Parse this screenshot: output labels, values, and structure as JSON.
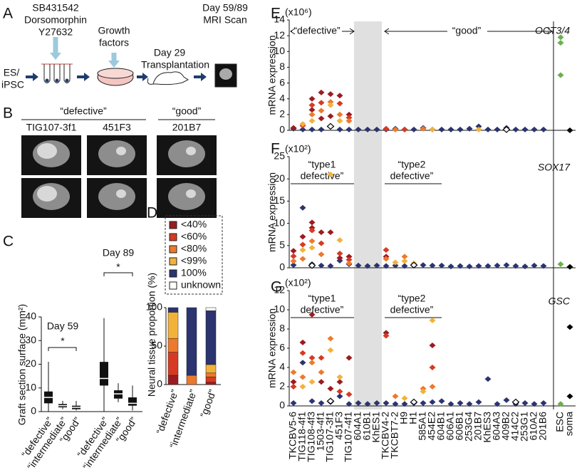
{
  "panel_labels": [
    "A",
    "B",
    "C",
    "D",
    "E",
    "F",
    "G"
  ],
  "panel_a": {
    "drugs": [
      "SB431542",
      "Dorsomorphin",
      "Y27632"
    ],
    "growth": [
      "Growth",
      "factors"
    ],
    "day29": [
      "Day 29",
      "Transplantation"
    ],
    "mri": [
      "Day 59/89",
      "MRI Scan"
    ],
    "source": [
      "ES/",
      "iPSC"
    ]
  },
  "panel_b": {
    "groups": [
      "“defective”",
      "“good”"
    ],
    "lines": [
      "TIG107-3f1",
      "451F3",
      "201B7"
    ]
  },
  "chart_data": [
    {
      "type": "box",
      "ylabel": "Graft section surface (mm²)",
      "categories": [
        "“defective”",
        "“intermediate”",
        "“good”",
        "“defective”",
        "“intermediate”",
        "“good”"
      ],
      "low": [
        0,
        1,
        0.5,
        0,
        4,
        0.5
      ],
      "q1": [
        3.5,
        1.8,
        1,
        11,
        5.5,
        2.5
      ],
      "median": [
        6,
        2.5,
        1.8,
        14,
        7.5,
        3.5
      ],
      "q3": [
        8.5,
        3.2,
        2.5,
        21,
        9,
        6
      ],
      "high": [
        21,
        4.5,
        4.5,
        39.5,
        12,
        11
      ],
      "annotations": [
        "Day 59",
        "Day 89",
        "*",
        "*"
      ],
      "ylim": [
        0,
        40
      ],
      "yticks": [
        0,
        10,
        20,
        30,
        40
      ]
    },
    {
      "type": "stacked_bar",
      "ylabel": "Neural tissue proportion (%)",
      "categories": [
        "“defective”",
        "“intermediate”",
        "“good”"
      ],
      "series": [
        {
          "name": "<40%",
          "color": "#9b1c20",
          "values": [
            12,
            0,
            3
          ]
        },
        {
          "name": "<60%",
          "color": "#d63a22",
          "values": [
            30,
            0,
            7
          ]
        },
        {
          "name": "<80%",
          "color": "#ec7a2c",
          "values": [
            18,
            12,
            5
          ]
        },
        {
          "name": "<99%",
          "color": "#f2b23a",
          "values": [
            34,
            0,
            11
          ]
        },
        {
          "name": "100%",
          "color": "#2b3470",
          "values": [
            6,
            88,
            70
          ]
        },
        {
          "name": "unknown",
          "color": "#ffffff",
          "values": [
            0,
            0,
            4
          ]
        }
      ],
      "ylim": [
        0,
        100
      ],
      "yticks": [
        0,
        50,
        100
      ]
    },
    {
      "type": "strip",
      "title": "OCT3/4",
      "unit": "(x10⁶)",
      "ylabel": "mRNA expression",
      "annotations": [
        "“defective”",
        "“good”"
      ],
      "ylim": [
        0,
        14
      ],
      "yticks": [
        0,
        2,
        4,
        6,
        8,
        10,
        12,
        14
      ],
      "series": [
        {
          "color": "#2b3470",
          "x": [
            "TKCBV5-6",
            "TIG118-4f1",
            "TIG108-4f3",
            "1503-4f1",
            "451F3",
            "TIG107-4f1",
            "604A1",
            "610B1",
            "KhES1",
            "TKCBV4-2",
            "TKCBT7-2",
            "H9",
            "H1",
            "585A1",
            "454E2",
            "604B1",
            "606A1",
            "606B1",
            "253G4",
            "201B7",
            "KhES3",
            "604A3",
            "409B2",
            "414C2",
            "253G1",
            "610A2",
            "201B6"
          ],
          "values": [
            0.2,
            0.1,
            0.1,
            0.1,
            0.1,
            0.1,
            0.1,
            0.1,
            0.1,
            0.1,
            0.2,
            0.1,
            0.1,
            0.3,
            0.1,
            0.1,
            0.1,
            0.1,
            0.2,
            0.5,
            0.1,
            0.1,
            0.3,
            0.1,
            0.1,
            0.1,
            0.1
          ]
        },
        {
          "color": "#9b1c20",
          "x": [
            "TKCBV5-6",
            "TIG108-4f3",
            "1503-4f1",
            "TIG107-3f1",
            "451F3",
            "TIG107-4f1",
            "1503-4f1",
            "TIG107-3f1",
            "TIG108-4f3"
          ],
          "values": [
            0.3,
            4.0,
            4.8,
            1.8,
            4.4,
            2.0,
            1.5,
            4.6,
            2.6
          ]
        },
        {
          "color": "#d63a22",
          "x": [
            "TIG118-4f1",
            "TIG108-4f3",
            "1503-4f1",
            "451F3",
            "TIG107-4f1",
            "TKCBV4-2",
            "H9"
          ],
          "values": [
            0.6,
            3.2,
            3.5,
            3.4,
            1.6,
            0.2,
            0.1
          ]
        },
        {
          "color": "#ec7a2c",
          "x": [
            "TIG108-4f3",
            "1503-4f1",
            "TIG107-3f1",
            "451F3",
            "TIG107-4f1",
            "585A1",
            "TKCBT7-2"
          ],
          "values": [
            2.0,
            2.5,
            3.6,
            2.0,
            1.2,
            0.2,
            0.1
          ]
        },
        {
          "color": "#f2b23a",
          "x": [
            "TIG118-4f1",
            "TIG108-4f3",
            "TIG107-3f1",
            "451F3",
            "454E2",
            "201B7"
          ],
          "values": [
            0.8,
            1.2,
            3.2,
            1.2,
            0.1,
            0.1
          ]
        },
        {
          "color": "#ffffff",
          "x": [
            "TIG107-3f1",
            "409B2"
          ],
          "values": [
            0.5,
            0.1
          ]
        },
        {
          "color": "#6ab04c",
          "x": [
            "ESC",
            "ESC",
            "ESC"
          ],
          "values": [
            11.8,
            11.1,
            7.0
          ]
        },
        {
          "color": "#000000",
          "x": [
            "soma"
          ],
          "values": [
            0
          ]
        }
      ]
    },
    {
      "type": "strip",
      "title": "SOX17",
      "unit": "(x10²)",
      "ylabel": "mRNA expression",
      "annotations": [
        "“type1",
        "defective”",
        "“type2",
        "defective”"
      ],
      "ylim": [
        0,
        25
      ],
      "yticks": [
        0,
        5,
        10,
        15,
        20,
        25
      ],
      "series": [
        {
          "color": "#2b3470",
          "x": [
            "TKCBV5-6",
            "TIG118-4f1",
            "TIG108-4f3",
            "1503-4f1",
            "TIG107-3f1",
            "451F3",
            "TIG107-4f1",
            "604A1",
            "610B1",
            "KhES1",
            "TKCBV4-2",
            "TKCBT7-2",
            "H9",
            "H1",
            "585A1",
            "454E2",
            "604B1",
            "606A1",
            "606B1",
            "253G4",
            "201B7",
            "KhES3",
            "604A3",
            "409B2",
            "414C2",
            "253G1",
            "610A2",
            "201B6"
          ],
          "values": [
            0.6,
            13.5,
            0.8,
            0.5,
            0.4,
            1.6,
            0.8,
            0.5,
            0.4,
            0.5,
            0.4,
            0.5,
            0.4,
            0.5,
            0.6,
            0.5,
            0.5,
            0.3,
            0.4,
            0.3,
            0.4,
            0.4,
            0.5,
            0.6,
            0.4,
            0.3,
            0.5,
            0.4
          ]
        },
        {
          "color": "#9b1c20",
          "x": [
            "TKCBV5-6",
            "TIG118-4f1",
            "TIG108-4f3",
            "1503-4f1",
            "451F3",
            "TIG107-4f1",
            "TIG108-4f3",
            "TIG107-3f1",
            "TKCBV4-2"
          ],
          "values": [
            3.8,
            7.0,
            10.2,
            8.0,
            2.2,
            2.5,
            9.0,
            8.0,
            2.5
          ]
        },
        {
          "color": "#d63a22",
          "x": [
            "TKCBV5-6",
            "TIG118-4f1",
            "TIG108-4f3",
            "1503-4f1",
            "451F3",
            "TIG107-4f1",
            "TKCBV4-2"
          ],
          "values": [
            2.6,
            5.2,
            8.4,
            5.5,
            3.2,
            1.8,
            4.0
          ]
        },
        {
          "color": "#ec7a2c",
          "x": [
            "TKCBV5-6",
            "TIG118-4f1",
            "TIG108-4f3",
            "1503-4f1",
            "TIG107-4f1",
            "TKCBV4-2",
            "H9"
          ],
          "values": [
            1.5,
            2.0,
            6.0,
            3.0,
            1.0,
            2.0,
            2.5
          ]
        },
        {
          "color": "#f2b23a",
          "x": [
            "TIG118-4f1",
            "TIG108-4f3",
            "TIG107-3f1",
            "451F3",
            "TKCBT7-2",
            "H9",
            "H1"
          ],
          "values": [
            4.0,
            4.5,
            21.0,
            6.2,
            1.2,
            1.5,
            1.0
          ]
        },
        {
          "color": "#ffffff",
          "x": [
            "TIG108-4f3",
            "H1"
          ],
          "values": [
            0.5,
            0.6
          ]
        },
        {
          "color": "#6ab04c",
          "x": [
            "ESC"
          ],
          "values": [
            0.8
          ]
        },
        {
          "color": "#000000",
          "x": [
            "soma"
          ],
          "values": [
            0.2
          ]
        }
      ]
    },
    {
      "type": "strip",
      "title": "GSC",
      "unit": "(x10²)",
      "ylabel": "mRNA expression",
      "annotations": [
        "“type1",
        "defective”",
        "“type2",
        "defective”"
      ],
      "ylim": [
        0,
        12
      ],
      "yticks": [
        0,
        2,
        4,
        6,
        8,
        10,
        12
      ],
      "categories": [
        "TKCBV5-6",
        "TIG118-4f1",
        "TIG108-4f3",
        "1503-4f1",
        "TIG107-3f1",
        "451F3",
        "TIG107-4f1",
        "604A1",
        "610B1",
        "KhES1",
        "TKCBV4-2",
        "TKCBT7-2",
        "H9",
        "H1",
        "585A1",
        "454E2",
        "604B1",
        "606A1",
        "606B1",
        "253G4",
        "201B7",
        "KhES3",
        "604A3",
        "409B2",
        "414C2",
        "253G1",
        "610A2",
        "201B6",
        "ESC",
        "soma"
      ],
      "series": [
        {
          "color": "#2b3470",
          "x": [
            "TKCBV5-6",
            "TIG118-4f1",
            "TIG108-4f3",
            "1503-4f1",
            "TIG107-3f1",
            "451F3",
            "TIG107-4f1",
            "604A1",
            "610B1",
            "KhES1",
            "TKCBV4-2",
            "TKCBT7-2",
            "H9",
            "H1",
            "585A1",
            "454E2",
            "604B1",
            "606A1",
            "606B1",
            "253G4",
            "201B7",
            "KhES3",
            "604A3",
            "409B2",
            "414C2",
            "253G1",
            "610A2",
            "201B6"
          ],
          "values": [
            0.3,
            4.5,
            0.5,
            0.3,
            0.4,
            1.0,
            0.2,
            0.3,
            0.2,
            0.3,
            0.3,
            0.2,
            0.2,
            0.3,
            0.3,
            0.4,
            0.5,
            0.2,
            0.3,
            0.2,
            0.4,
            2.8,
            0.2,
            0.6,
            0.2,
            0.3,
            0.2,
            0.3
          ]
        },
        {
          "color": "#9b1c20",
          "x": [
            "TKCBV5-6",
            "TIG118-4f1",
            "TIG108-4f3",
            "1503-4f1",
            "TIG107-3f1",
            "451F3",
            "TIG107-4f1",
            "TKCBV4-2",
            "454E2"
          ],
          "values": [
            2.5,
            6.6,
            9.5,
            2.5,
            1.8,
            2.5,
            5.0,
            7.6,
            6.3
          ]
        },
        {
          "color": "#d63a22",
          "x": [
            "TKCBV5-6",
            "TIG118-4f1",
            "TIG108-4f3",
            "1503-4f1",
            "451F3",
            "TIG107-4f1",
            "TKCBV4-2",
            "454E2"
          ],
          "values": [
            2.0,
            5.5,
            5.0,
            5.0,
            1.5,
            1.2,
            7.3,
            4.0
          ]
        },
        {
          "color": "#ec7a2c",
          "x": [
            "TKCBV5-6",
            "TIG118-4f1",
            "TIG108-4f3",
            "1503-4f1",
            "TIG107-3f1",
            "TKCBT7-2",
            "585A1",
            "454E2"
          ],
          "values": [
            3.5,
            3.0,
            4.5,
            3.5,
            7.0,
            1.0,
            1.8,
            2.0
          ]
        },
        {
          "color": "#f2b23a",
          "x": [
            "TIG118-4f1",
            "TIG108-4f3",
            "TIG107-3f1",
            "451F3",
            "585A1",
            "454E2",
            "H9"
          ],
          "values": [
            2.0,
            2.5,
            5.8,
            3.0,
            1.5,
            8.9,
            0.8
          ]
        },
        {
          "color": "#ffffff",
          "x": [
            "TIG107-3f1",
            "H1",
            "414C2"
          ],
          "values": [
            0.5,
            0.4,
            0.4
          ]
        },
        {
          "color": "#6ab04c",
          "x": [
            "ESC"
          ],
          "values": [
            0.2
          ]
        },
        {
          "color": "#000000",
          "x": [
            "soma",
            "soma"
          ],
          "values": [
            8.2,
            1.0
          ]
        }
      ]
    }
  ]
}
